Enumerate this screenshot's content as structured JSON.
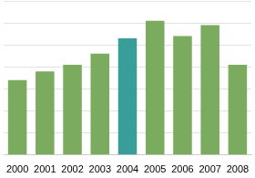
{
  "chart_data": {
    "type": "bar",
    "categories": [
      "2000",
      "2001",
      "2002",
      "2003",
      "2004",
      "2005",
      "2006",
      "2007",
      "2008"
    ],
    "values": [
      3.4,
      3.8,
      4.1,
      4.6,
      5.3,
      6.1,
      5.4,
      5.9,
      4.1
    ],
    "colors": [
      "#7aab5f",
      "#7aab5f",
      "#7aab5f",
      "#7aab5f",
      "#3a9e98",
      "#7aab5f",
      "#7aab5f",
      "#7aab5f",
      "#7aab5f"
    ],
    "ylim": [
      0,
      7
    ],
    "yticks": [
      0,
      1,
      2,
      3,
      4,
      5,
      6,
      7
    ],
    "grid": true,
    "tick_labels": "x"
  }
}
